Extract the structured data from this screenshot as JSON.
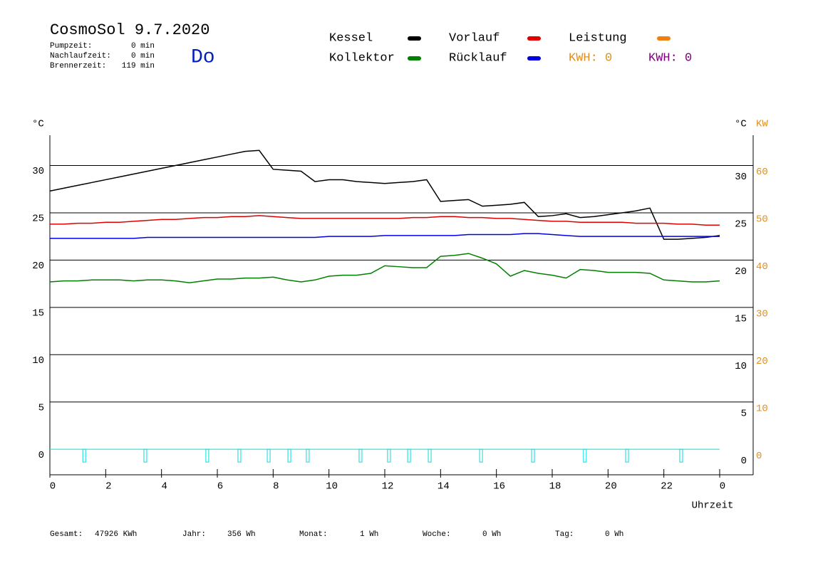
{
  "header": {
    "title": "CosmoSol 9.7.2020",
    "day": "Do",
    "info": [
      {
        "label": "Pumpzeit:",
        "value": "0 min"
      },
      {
        "label": "Nachlaufzeit:",
        "value": "0 min"
      },
      {
        "label": "Brennerzeit:",
        "value": "119 min"
      }
    ],
    "kwh": [
      "KWH: 0",
      "KWH: 0"
    ]
  },
  "footer": [
    {
      "label": "Gesamt:",
      "value": "47926 KWh"
    },
    {
      "label": "Jahr:",
      "value": "356 Wh"
    },
    {
      "label": "Monat:",
      "value": "1 Wh"
    },
    {
      "label": "Woche:",
      "value": "0 Wh"
    },
    {
      "label": "Tag:",
      "value": "0 Wh"
    }
  ],
  "chart_data": {
    "type": "line",
    "y_label": "°C",
    "y2_label_c": "°C",
    "y2_label": "KW",
    "x_label": "Uhrzeit",
    "x": [
      0,
      0.5,
      1,
      1.5,
      2,
      2.5,
      3,
      3.5,
      4,
      4.5,
      5,
      5.5,
      6,
      6.5,
      7,
      7.5,
      8,
      8.5,
      9,
      9.5,
      10,
      10.5,
      11,
      11.5,
      12,
      12.5,
      13,
      13.5,
      14,
      14.5,
      15,
      15.5,
      16,
      16.5,
      17,
      17.5,
      18,
      18.5,
      19,
      19.5,
      20,
      20.5,
      21,
      21.5,
      22,
      22.5,
      23,
      23.5,
      24
    ],
    "series": [
      {
        "name": "Kessel",
        "color": "#000000",
        "values": [
          27.3,
          27.6,
          27.9,
          28.2,
          28.5,
          28.8,
          29.1,
          29.4,
          29.7,
          30.0,
          30.3,
          30.6,
          30.9,
          31.2,
          31.5,
          31.6,
          29.6,
          29.5,
          29.4,
          28.3,
          28.5,
          28.5,
          28.3,
          28.2,
          28.1,
          28.2,
          28.3,
          28.5,
          26.2,
          26.3,
          26.4,
          25.7,
          25.8,
          25.9,
          26.1,
          24.6,
          24.7,
          24.9,
          24.5,
          24.6,
          24.8,
          25.0,
          25.2,
          25.5,
          22.2,
          22.2,
          22.3,
          22.4,
          22.6
        ]
      },
      {
        "name": "Kollektor",
        "color": "#008000",
        "values": [
          17.7,
          17.8,
          17.8,
          17.9,
          17.9,
          17.9,
          17.8,
          17.9,
          17.9,
          17.8,
          17.6,
          17.8,
          18.0,
          18.0,
          18.1,
          18.1,
          18.2,
          17.9,
          17.7,
          17.9,
          18.3,
          18.4,
          18.4,
          18.6,
          19.4,
          19.3,
          19.2,
          19.2,
          20.4,
          20.5,
          20.7,
          20.2,
          19.6,
          18.3,
          18.9,
          18.6,
          18.4,
          18.1,
          19.0,
          18.9,
          18.7,
          18.7,
          18.7,
          18.6,
          17.9,
          17.8,
          17.7,
          17.7,
          17.8
        ]
      },
      {
        "name": "Vorlauf",
        "color": "#e00000",
        "values": [
          23.8,
          23.8,
          23.9,
          23.9,
          24.0,
          24.0,
          24.1,
          24.2,
          24.3,
          24.3,
          24.4,
          24.5,
          24.5,
          24.6,
          24.6,
          24.7,
          24.6,
          24.5,
          24.4,
          24.4,
          24.4,
          24.4,
          24.4,
          24.4,
          24.4,
          24.4,
          24.5,
          24.5,
          24.6,
          24.6,
          24.5,
          24.5,
          24.4,
          24.4,
          24.3,
          24.2,
          24.1,
          24.1,
          24.0,
          24.0,
          24.0,
          24.0,
          23.9,
          23.9,
          23.9,
          23.8,
          23.8,
          23.7,
          23.7
        ]
      },
      {
        "name": "Rücklauf",
        "color": "#0000e0",
        "values": [
          22.3,
          22.3,
          22.3,
          22.3,
          22.3,
          22.3,
          22.3,
          22.4,
          22.4,
          22.4,
          22.4,
          22.4,
          22.4,
          22.4,
          22.4,
          22.4,
          22.4,
          22.4,
          22.4,
          22.4,
          22.5,
          22.5,
          22.5,
          22.5,
          22.6,
          22.6,
          22.6,
          22.6,
          22.6,
          22.6,
          22.7,
          22.7,
          22.7,
          22.7,
          22.8,
          22.8,
          22.7,
          22.6,
          22.5,
          22.5,
          22.5,
          22.5,
          22.5,
          22.5,
          22.5,
          22.5,
          22.5,
          22.5,
          22.5
        ]
      }
    ],
    "extra_legend": [
      {
        "name": "Leistung",
        "color": "#f08010"
      }
    ],
    "pump_on": [
      1.23,
      3.42,
      5.64,
      6.79,
      7.84,
      8.58,
      9.24,
      11.13,
      12.15,
      12.87,
      13.61,
      15.45,
      17.31,
      19.17,
      20.68,
      22.62
    ],
    "pump_color": "#00e0e0",
    "xlim": [
      0,
      25.2
    ],
    "xticks": [
      0,
      2,
      4,
      6,
      8,
      10,
      12,
      14,
      16,
      18,
      20,
      22,
      {
        "value": 24,
        "label": "0"
      }
    ],
    "ylim": [
      -2.7,
      33.2
    ],
    "yticks": [
      0,
      5,
      10,
      15,
      20,
      25,
      30
    ],
    "y2lim": [
      -5.4,
      66.4
    ],
    "y2ticks": [
      0,
      10,
      20,
      30,
      40,
      50,
      60
    ],
    "y2color": "#e09020",
    "grid": true
  }
}
